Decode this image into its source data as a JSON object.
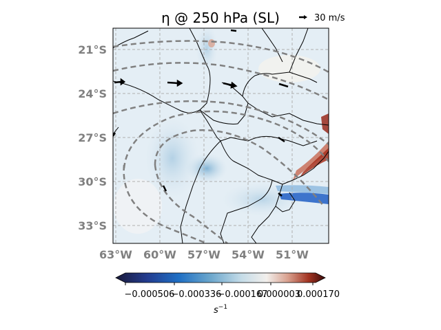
{
  "title": "η @ 250 hPa (SL)",
  "reference_vector": {
    "label": "30 m/s"
  },
  "map": {
    "lat_labels": [
      "21°S",
      "24°S",
      "27°S",
      "30°S",
      "33°S"
    ],
    "lon_labels": [
      "63°W",
      "60°W",
      "57°W",
      "54°W",
      "51°W"
    ],
    "gridlines": true,
    "colors": {
      "coastline": "#000000",
      "contour": "#808080",
      "grid": "#b0b0b0",
      "positive": "#b03a2a",
      "negative": "#2a66c8"
    }
  },
  "colorbar": {
    "ticks": [
      "−0.000506",
      "−0.000336",
      "−0.000167",
      "0.000003",
      "0.000170"
    ],
    "unit_base": "s",
    "unit_exp": "−1"
  }
}
